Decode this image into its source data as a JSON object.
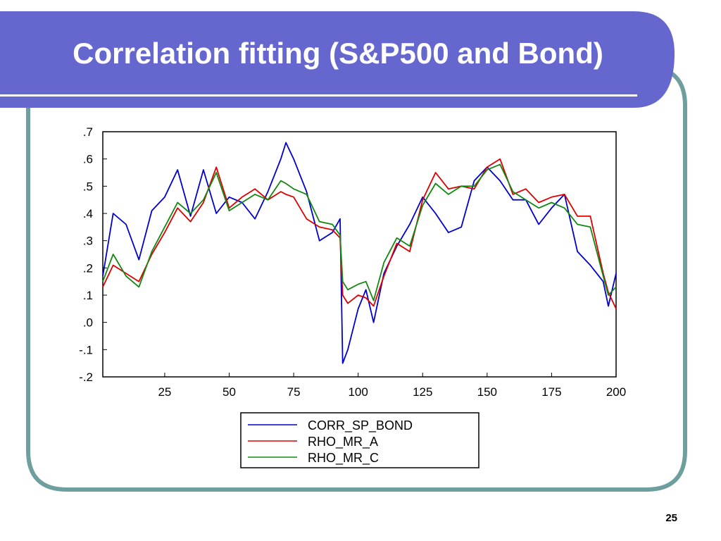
{
  "slide": {
    "title": "Correlation fitting (S&P500 and Bond)",
    "page_number": "25",
    "colors": {
      "banner": "#6567CE",
      "frame": "#6E9E9E",
      "background": "#FFFFFF"
    }
  },
  "chart_data": {
    "type": "line",
    "title": "",
    "xlabel": "",
    "ylabel": "",
    "xlim": [
      1,
      200
    ],
    "ylim": [
      -0.2,
      0.7
    ],
    "x_ticks": [
      25,
      50,
      75,
      100,
      125,
      150,
      175,
      200
    ],
    "x_tick_labels": [
      "25",
      "50",
      "75",
      "100",
      "125",
      "150",
      "175",
      "200"
    ],
    "y_ticks": [
      -0.2,
      -0.1,
      0.0,
      0.1,
      0.2,
      0.3,
      0.4,
      0.5,
      0.6,
      0.7
    ],
    "y_tick_labels": [
      "-.2",
      "-.1",
      ".0",
      ".1",
      ".2",
      ".3",
      ".4",
      ".5",
      ".6",
      ".7"
    ],
    "grid": false,
    "legend_position": "bottom-center",
    "x": [
      1,
      5,
      10,
      15,
      20,
      25,
      30,
      35,
      40,
      45,
      50,
      55,
      60,
      65,
      70,
      72,
      75,
      80,
      85,
      90,
      93,
      94,
      96,
      100,
      103,
      106,
      110,
      115,
      120,
      125,
      130,
      135,
      140,
      145,
      150,
      155,
      160,
      165,
      170,
      175,
      180,
      185,
      190,
      195,
      197,
      200
    ],
    "series": [
      {
        "name": "CORR_SP_BOND",
        "color": "#0000CC",
        "values": [
          0.17,
          0.4,
          0.36,
          0.23,
          0.41,
          0.46,
          0.56,
          0.39,
          0.56,
          0.4,
          0.46,
          0.44,
          0.38,
          0.48,
          0.6,
          0.66,
          0.6,
          0.48,
          0.3,
          0.33,
          0.38,
          -0.15,
          -0.1,
          0.05,
          0.12,
          0.0,
          0.18,
          0.28,
          0.36,
          0.46,
          0.4,
          0.33,
          0.35,
          0.52,
          0.57,
          0.52,
          0.45,
          0.45,
          0.36,
          0.42,
          0.47,
          0.26,
          0.21,
          0.15,
          0.06,
          0.18
        ]
      },
      {
        "name": "RHO_MR_A",
        "color": "#DD0000",
        "values": [
          0.13,
          0.21,
          0.18,
          0.15,
          0.25,
          0.33,
          0.42,
          0.37,
          0.44,
          0.57,
          0.42,
          0.46,
          0.49,
          0.45,
          0.48,
          0.47,
          0.46,
          0.38,
          0.35,
          0.34,
          0.31,
          0.1,
          0.07,
          0.1,
          0.09,
          0.06,
          0.17,
          0.29,
          0.26,
          0.45,
          0.55,
          0.49,
          0.5,
          0.49,
          0.57,
          0.6,
          0.47,
          0.49,
          0.44,
          0.46,
          0.47,
          0.39,
          0.39,
          0.18,
          0.11,
          0.05
        ]
      },
      {
        "name": "RHO_MR_C",
        "color": "#118811",
        "values": [
          0.15,
          0.25,
          0.17,
          0.13,
          0.26,
          0.35,
          0.44,
          0.4,
          0.45,
          0.55,
          0.41,
          0.44,
          0.47,
          0.45,
          0.52,
          0.51,
          0.49,
          0.47,
          0.37,
          0.36,
          0.32,
          0.15,
          0.12,
          0.14,
          0.15,
          0.08,
          0.22,
          0.31,
          0.28,
          0.43,
          0.51,
          0.47,
          0.5,
          0.5,
          0.56,
          0.58,
          0.48,
          0.45,
          0.42,
          0.44,
          0.42,
          0.36,
          0.35,
          0.17,
          0.1,
          0.13
        ]
      }
    ]
  }
}
